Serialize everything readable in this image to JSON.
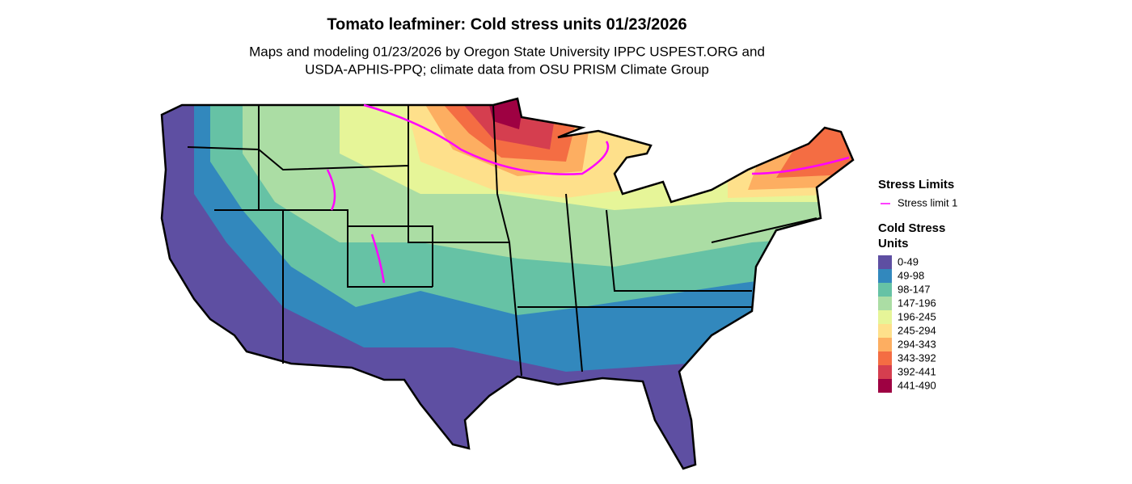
{
  "title": "Tomato leafminer: Cold stress units 01/23/2026",
  "subtitle": [
    "Maps and modeling 01/23/2026 by Oregon State University IPPC USPEST.ORG and",
    "USDA-APHIS-PPQ; climate data from OSU PRISM Climate Group"
  ],
  "legend": {
    "stress_title": "Stress Limits",
    "stress_items": [
      {
        "label": "Stress limit 1",
        "color": "#ff00ff"
      }
    ],
    "units_title": [
      "Cold Stress",
      "Units"
    ],
    "units_items": [
      {
        "label": "0-49",
        "color": "#5e4fa2"
      },
      {
        "label": "49-98",
        "color": "#3288bd"
      },
      {
        "label": "98-147",
        "color": "#66c2a5"
      },
      {
        "label": "147-196",
        "color": "#abdda4"
      },
      {
        "label": "196-245",
        "color": "#e6f598"
      },
      {
        "label": "245-294",
        "color": "#fee08b"
      },
      {
        "label": "294-343",
        "color": "#fdae61"
      },
      {
        "label": "343-392",
        "color": "#f46d43"
      },
      {
        "label": "392-441",
        "color": "#d53e4f"
      },
      {
        "label": "441-490",
        "color": "#9e0142"
      }
    ]
  }
}
